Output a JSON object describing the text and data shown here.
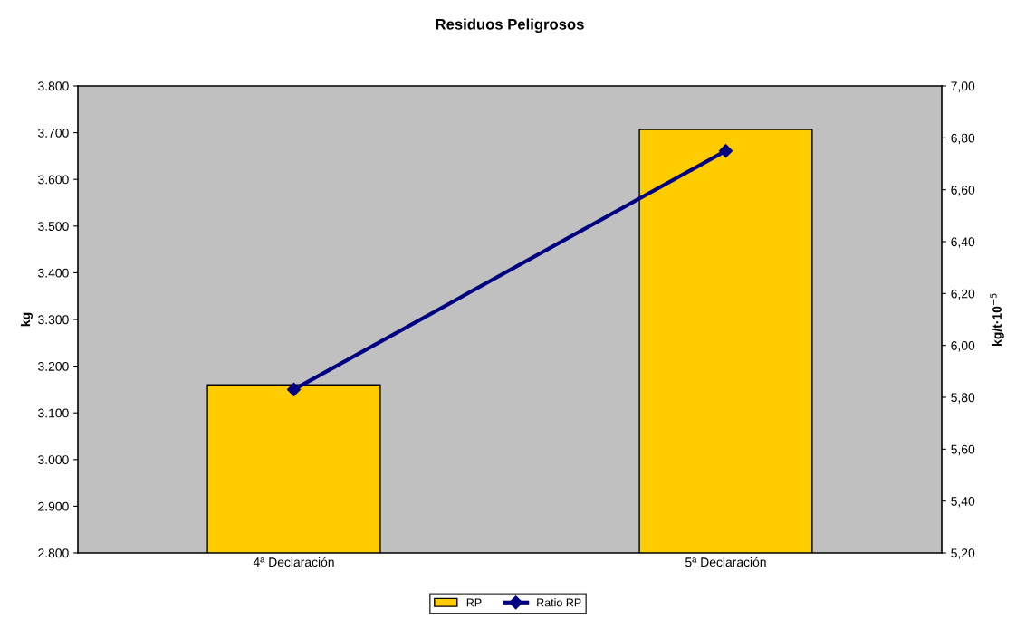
{
  "chart_data": {
    "type": "bar",
    "title": "Residuos Peligrosos",
    "ylabel": "kg",
    "y2label": "kg/t·10$^{−5}$",
    "categories": [
      "4ª Declaración",
      "5ª Declaración"
    ],
    "series": [
      {
        "name": "RP",
        "color": "#ffcc00",
        "values": [
          3160,
          3707
        ]
      },
      {
        "name": "Ratio RP",
        "type": "line",
        "axis": "y2",
        "color": "#000080",
        "marker": "diamond",
        "values": [
          5.83,
          6.75
        ]
      }
    ],
    "ylim": [
      2800,
      3800
    ],
    "yticks": [
      {
        "value": 2800,
        "label": "2.800"
      },
      {
        "value": 2900,
        "label": "2.900"
      },
      {
        "value": 3000,
        "label": "3.000"
      },
      {
        "value": 3100,
        "label": "3.100"
      },
      {
        "value": 3200,
        "label": "3.200"
      },
      {
        "value": 3300,
        "label": "3.300"
      },
      {
        "value": 3400,
        "label": "3.400"
      },
      {
        "value": 3500,
        "label": "3.500"
      },
      {
        "value": 3600,
        "label": "3.600"
      },
      {
        "value": 3700,
        "label": "3.700"
      },
      {
        "value": 3800,
        "label": "3.800"
      }
    ],
    "y2lim": [
      5.2,
      7.0
    ],
    "y2ticks": [
      {
        "value": 5.2,
        "label": "5,20"
      },
      {
        "value": 5.4,
        "label": "5,40"
      },
      {
        "value": 5.6,
        "label": "5,60"
      },
      {
        "value": 5.8,
        "label": "5,80"
      },
      {
        "value": 6.0,
        "label": "6,00"
      },
      {
        "value": 6.2,
        "label": "6,20"
      },
      {
        "value": 6.4,
        "label": "6,40"
      },
      {
        "value": 6.6,
        "label": "6,60"
      },
      {
        "value": 6.8,
        "label": "6,80"
      },
      {
        "value": 7.0,
        "label": "7,00"
      }
    ],
    "grid": false,
    "legend": "bottom"
  }
}
